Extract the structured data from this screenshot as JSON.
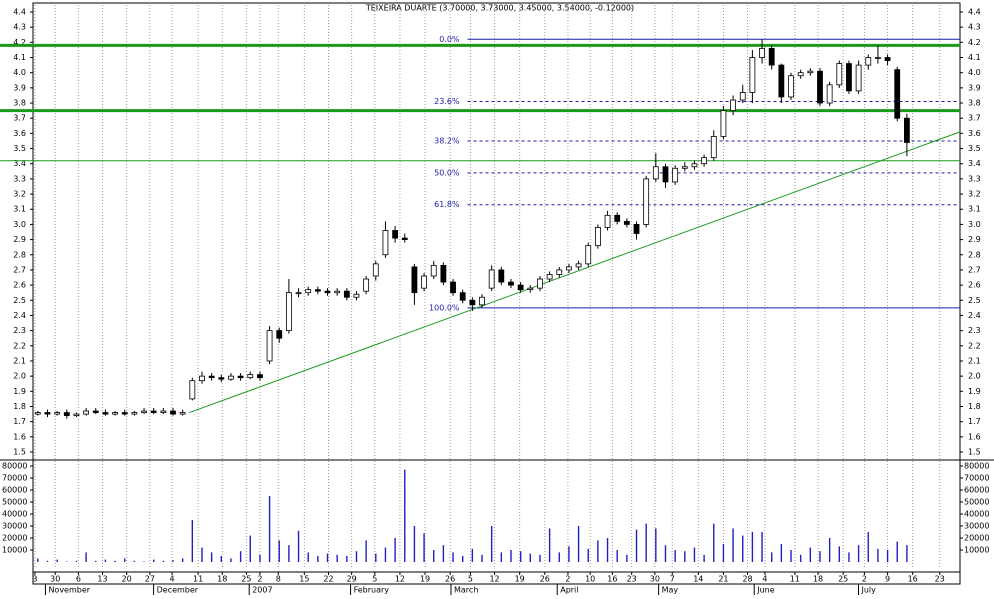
{
  "chart_data": {
    "type": "candlestick",
    "title": "TEIXEIRA DUARTE (3.70000, 3.73000, 3.45000, 3.54000, -0.12000)",
    "xlim": [
      0,
      96
    ],
    "open": [
      1.75,
      1.76,
      1.75,
      1.76,
      1.74,
      1.75,
      1.77,
      1.76,
      1.75,
      1.76,
      1.75,
      1.76,
      1.77,
      1.76,
      1.77,
      1.75,
      1.85,
      1.97,
      2.0,
      1.99,
      1.98,
      2.0,
      1.99,
      2.01,
      2.1,
      2.3,
      2.3,
      2.55,
      2.55,
      2.57,
      2.56,
      2.55,
      2.56,
      2.52,
      2.56,
      2.66,
      2.8,
      2.96,
      2.91,
      2.72,
      2.58,
      2.66,
      2.73,
      2.62,
      2.55,
      2.5,
      2.47,
      2.58,
      2.7,
      2.62,
      2.6,
      2.57,
      2.58,
      2.64,
      2.67,
      2.7,
      2.72,
      2.74,
      2.86,
      2.98,
      3.06,
      3.02,
      3.0,
      3.0,
      3.3,
      3.38,
      3.28,
      3.37,
      3.38,
      3.4,
      3.44,
      3.58,
      3.75,
      3.82,
      3.87,
      4.1,
      4.16,
      4.05,
      3.84,
      3.98,
      4.0,
      4.01,
      3.8,
      3.92,
      4.06,
      3.88,
      4.05,
      4.1,
      4.1,
      4.02,
      3.7
    ],
    "high": [
      1.77,
      1.78,
      1.77,
      1.78,
      1.76,
      1.79,
      1.79,
      1.78,
      1.77,
      1.78,
      1.77,
      1.79,
      1.79,
      1.79,
      1.79,
      1.78,
      1.99,
      2.03,
      2.02,
      2.01,
      2.02,
      2.02,
      2.03,
      2.03,
      2.33,
      2.32,
      2.64,
      2.58,
      2.59,
      2.59,
      2.58,
      2.58,
      2.58,
      2.56,
      2.66,
      2.76,
      3.02,
      2.99,
      2.94,
      2.74,
      2.68,
      2.76,
      2.75,
      2.64,
      2.57,
      2.52,
      2.54,
      2.73,
      2.72,
      2.64,
      2.62,
      2.6,
      2.66,
      2.69,
      2.72,
      2.74,
      2.76,
      2.88,
      3.0,
      3.09,
      3.08,
      3.04,
      3.02,
      3.32,
      3.47,
      3.4,
      3.39,
      3.41,
      3.42,
      3.46,
      3.62,
      3.78,
      3.85,
      3.92,
      4.15,
      4.22,
      4.18,
      4.06,
      4.0,
      4.02,
      4.03,
      4.03,
      3.94,
      4.08,
      4.08,
      4.08,
      4.12,
      4.18,
      4.12,
      4.04,
      3.73
    ],
    "low": [
      1.74,
      1.73,
      1.74,
      1.72,
      1.73,
      1.74,
      1.75,
      1.74,
      1.74,
      1.74,
      1.74,
      1.75,
      1.75,
      1.75,
      1.74,
      1.74,
      1.84,
      1.95,
      1.97,
      1.96,
      1.97,
      1.97,
      1.98,
      1.97,
      2.08,
      2.22,
      2.28,
      2.52,
      2.53,
      2.54,
      2.53,
      2.53,
      2.5,
      2.5,
      2.54,
      2.63,
      2.78,
      2.88,
      2.88,
      2.47,
      2.56,
      2.64,
      2.6,
      2.53,
      2.48,
      2.43,
      2.45,
      2.56,
      2.6,
      2.58,
      2.55,
      2.55,
      2.56,
      2.62,
      2.65,
      2.68,
      2.7,
      2.72,
      2.84,
      2.96,
      3.0,
      2.98,
      2.9,
      2.98,
      3.28,
      3.24,
      3.26,
      3.35,
      3.36,
      3.38,
      3.42,
      3.56,
      3.72,
      3.8,
      3.8,
      4.06,
      4.02,
      3.8,
      3.82,
      3.96,
      3.98,
      3.78,
      3.78,
      3.9,
      3.86,
      3.86,
      4.02,
      4.06,
      4.05,
      3.68,
      3.45
    ],
    "close": [
      1.76,
      1.75,
      1.76,
      1.74,
      1.75,
      1.77,
      1.76,
      1.75,
      1.76,
      1.75,
      1.76,
      1.77,
      1.76,
      1.77,
      1.75,
      1.76,
      1.97,
      2.0,
      1.99,
      1.98,
      2.0,
      1.99,
      2.01,
      1.99,
      2.3,
      2.25,
      2.55,
      2.55,
      2.57,
      2.56,
      2.55,
      2.56,
      2.52,
      2.54,
      2.64,
      2.74,
      2.96,
      2.91,
      2.9,
      2.55,
      2.66,
      2.73,
      2.62,
      2.55,
      2.5,
      2.47,
      2.52,
      2.7,
      2.62,
      2.6,
      2.57,
      2.58,
      2.64,
      2.67,
      2.7,
      2.72,
      2.74,
      2.86,
      2.98,
      3.06,
      3.02,
      3.0,
      2.94,
      3.3,
      3.38,
      3.28,
      3.37,
      3.38,
      3.4,
      3.44,
      3.58,
      3.75,
      3.82,
      3.87,
      4.1,
      4.16,
      4.05,
      3.84,
      3.98,
      4.0,
      4.01,
      3.8,
      3.92,
      4.06,
      3.88,
      4.05,
      4.1,
      4.1,
      4.08,
      3.7,
      3.54
    ],
    "volume": [
      3000,
      1000,
      2000,
      500,
      1000,
      8000,
      1000,
      2000,
      1000,
      3000,
      1000,
      500,
      2000,
      1000,
      1500,
      3000,
      35000,
      12000,
      8000,
      5000,
      3000,
      9000,
      22000,
      6000,
      55000,
      18000,
      14000,
      26000,
      8000,
      5000,
      7000,
      6000,
      5000,
      9000,
      18000,
      7000,
      12000,
      20000,
      77000,
      30000,
      24000,
      10000,
      14000,
      8000,
      5000,
      11000,
      6000,
      30000,
      8000,
      10000,
      9000,
      7000,
      6000,
      28000,
      8000,
      13000,
      30000,
      11000,
      18000,
      20000,
      10000,
      6000,
      27000,
      32000,
      28000,
      14000,
      10000,
      9000,
      12000,
      6000,
      32000,
      15000,
      28000,
      22000,
      25000,
      25000,
      8000,
      15000,
      10000,
      6000,
      12000,
      9000,
      20000,
      13000,
      8000,
      14000,
      25000,
      11000,
      10000,
      17000,
      14000
    ],
    "ylim": [
      1.5,
      4.4
    ],
    "yticks": [
      1.5,
      1.6,
      1.7,
      1.8,
      1.9,
      {
        "value": 2,
        "label": "2.0"
      },
      2.1,
      2.2,
      2.3,
      2.4,
      2.5,
      2.6,
      2.7,
      2.8,
      2.9,
      {
        "value": 3,
        "label": "3.0"
      },
      3.1,
      3.2,
      3.3,
      3.4,
      3.5,
      3.6,
      3.7,
      3.8,
      3.9,
      {
        "value": 4,
        "label": "4.0"
      },
      4.1,
      4.2,
      4.3,
      4.4
    ],
    "volume_ylim": [
      0,
      80000
    ],
    "volume_yticks": [
      10000,
      20000,
      30000,
      40000,
      50000,
      60000,
      70000,
      80000
    ],
    "xticks": [
      {
        "value": 0.2,
        "label": "3"
      },
      {
        "value": 2.3,
        "label": "30"
      },
      {
        "value": 4.7,
        "label": "6"
      },
      {
        "value": 7.2,
        "label": "13"
      },
      {
        "value": 9.7,
        "label": "20"
      },
      {
        "value": 12.1,
        "label": "27"
      },
      {
        "value": 14.4,
        "label": "4"
      },
      {
        "value": 17.1,
        "label": "11"
      },
      {
        "value": 19.6,
        "label": "18"
      },
      {
        "value": 22.1,
        "label": "25"
      },
      {
        "value": 23.5,
        "label": "2"
      },
      {
        "value": 25.4,
        "label": "8"
      },
      {
        "value": 28.1,
        "label": "15"
      },
      {
        "value": 30.6,
        "label": "22"
      },
      {
        "value": 33.0,
        "label": "29"
      },
      {
        "value": 35.4,
        "label": "5"
      },
      {
        "value": 38.0,
        "label": "12"
      },
      {
        "value": 40.6,
        "label": "19"
      },
      {
        "value": 43.2,
        "label": "26"
      },
      {
        "value": 45.3,
        "label": "5"
      },
      {
        "value": 47.8,
        "label": "12"
      },
      {
        "value": 50.4,
        "label": "19"
      },
      {
        "value": 53.0,
        "label": "26"
      },
      {
        "value": 55.4,
        "label": "2"
      },
      {
        "value": 57.7,
        "label": "10"
      },
      {
        "value": 60.0,
        "label": "16"
      },
      {
        "value": 62.0,
        "label": "23"
      },
      {
        "value": 64.4,
        "label": "30"
      },
      {
        "value": 66.2,
        "label": "7"
      },
      {
        "value": 68.9,
        "label": "14"
      },
      {
        "value": 71.5,
        "label": "21"
      },
      {
        "value": 74.0,
        "label": "28"
      },
      {
        "value": 75.8,
        "label": "4"
      },
      {
        "value": 78.9,
        "label": "11"
      },
      {
        "value": 81.3,
        "label": "18"
      },
      {
        "value": 83.9,
        "label": "25"
      },
      {
        "value": 86.1,
        "label": "2"
      },
      {
        "value": 88.5,
        "label": "9"
      },
      {
        "value": 91.1,
        "label": "16"
      },
      {
        "value": 93.9,
        "label": "23"
      }
    ],
    "months": [
      {
        "value": 1.6,
        "label": "November"
      },
      {
        "value": 12.8,
        "label": "December"
      },
      {
        "value": 22.7,
        "label": "2007"
      },
      {
        "value": 33.2,
        "label": "February"
      },
      {
        "value": 43.6,
        "label": "March"
      },
      {
        "value": 54.6,
        "label": "April"
      },
      {
        "value": 65.1,
        "label": "May"
      },
      {
        "value": 75.0,
        "label": "June"
      },
      {
        "value": 85.8,
        "label": "July"
      }
    ],
    "hlines": [
      {
        "value": 4.18,
        "width": 3
      },
      {
        "value": 3.75,
        "width": 3
      },
      {
        "value": 3.42,
        "width": 1
      }
    ],
    "hline_color": "#1a9a1a",
    "fib": [
      {
        "label": "0.0%",
        "value": 4.22
      },
      {
        "label": "23.6%",
        "value": 3.81
      },
      {
        "label": "38.2%",
        "value": 3.55
      },
      {
        "label": "50.0%",
        "value": 3.34
      },
      {
        "label": "61.8%",
        "value": 3.13
      },
      {
        "label": "100.0%",
        "value": 2.45
      }
    ],
    "fib_start": 45.0,
    "fib_color": "#1c1caa",
    "trendline": {
      "x": [
        16.2,
        96
      ],
      "y": [
        1.76,
        3.61
      ],
      "color": "#1a9a1a"
    },
    "volume_color": "#2020c0",
    "grid": true
  }
}
